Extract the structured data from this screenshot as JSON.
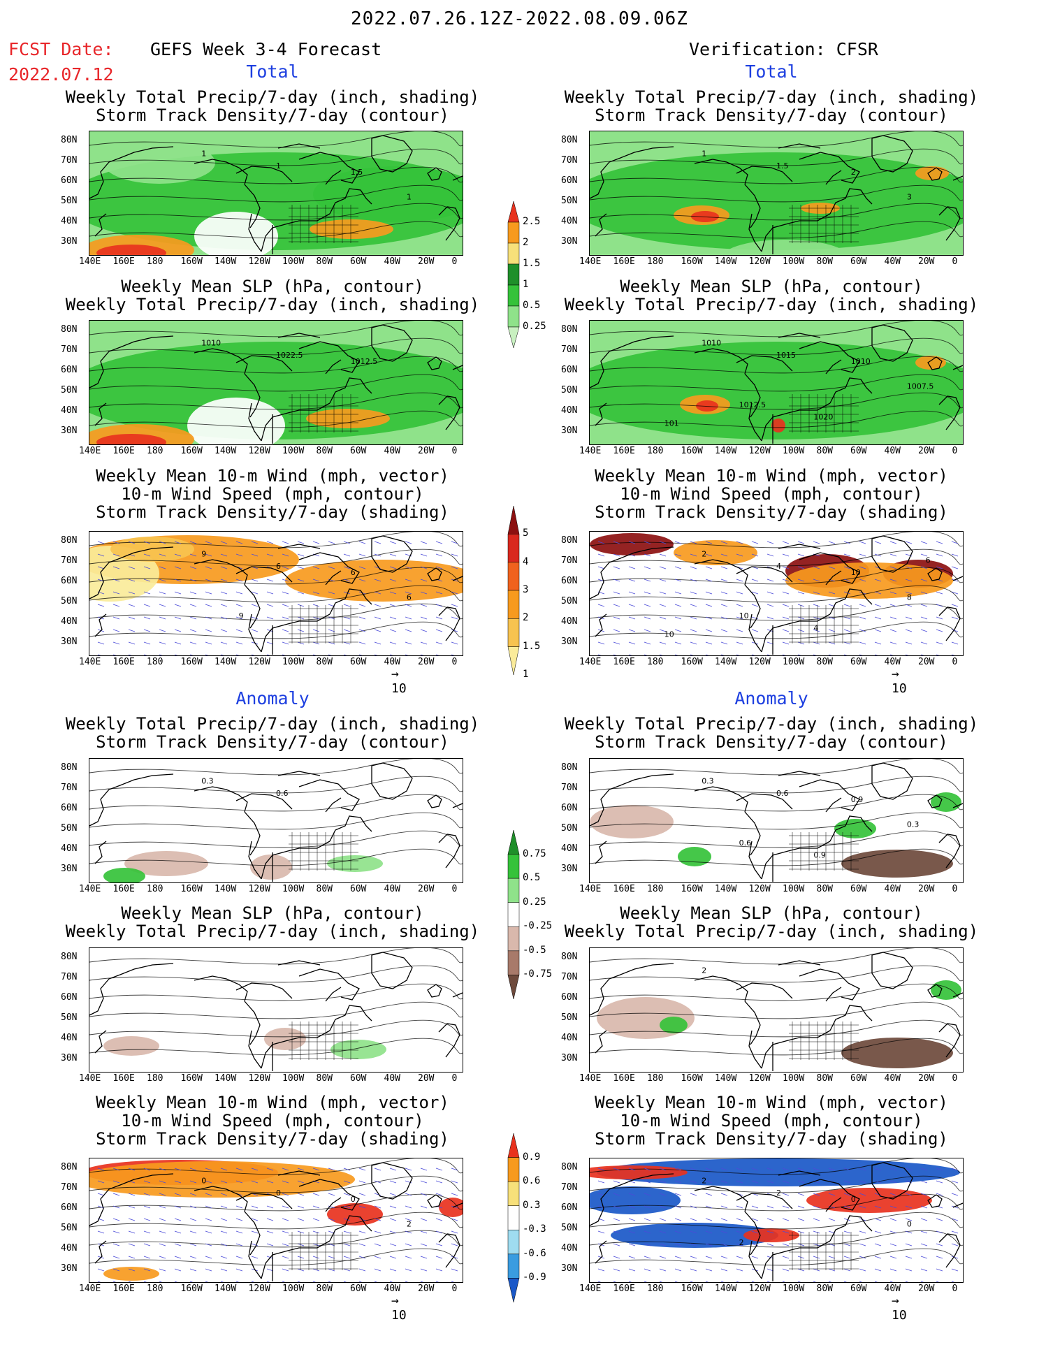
{
  "header": {
    "date_range": "2022.07.26.12Z-2022.08.09.06Z",
    "fcst_label": "FCST Date:",
    "fcst_date": "2022.07.12",
    "left_title": "GEFS Week 3-4 Forecast",
    "right_title": "Verification: CFSR",
    "total_label": "Total",
    "anomaly_label": "Anomaly"
  },
  "titles": {
    "precip_storm": [
      "Weekly Total Precip/7-day (inch, shading)",
      "Storm Track Density/7-day (contour)"
    ],
    "slp_precip": [
      "Weekly Mean SLP (hPa, contour)",
      "Weekly Total Precip/7-day (inch, shading)"
    ],
    "wind_storm": [
      "Weekly Mean 10-m Wind (mph, vector)",
      "10-m Wind Speed (mph, contour)",
      "Storm Track Density/7-day (shading)"
    ]
  },
  "axes": {
    "lat_labels": [
      "80N",
      "70N",
      "60N",
      "50N",
      "40N",
      "30N"
    ],
    "lon_labels": [
      "140E",
      "160E",
      "180",
      "160W",
      "140W",
      "120W",
      "100W",
      "80W",
      "60W",
      "40W",
      "20W",
      "0"
    ]
  },
  "vector_ref": {
    "arrow": "→",
    "value": "10"
  },
  "colorbars": {
    "precip_total": {
      "labels": [
        "2.5",
        "2",
        "1.5",
        "1",
        "0.5",
        "0.25"
      ],
      "colors": [
        "#e8321e",
        "#f79a1e",
        "#f7e07a",
        "#1f8f2a",
        "#35c23a",
        "#8fe28a",
        "#c8f0c0"
      ]
    },
    "storm_total": {
      "labels": [
        "5",
        "4",
        "3",
        "2",
        "1.5",
        "1"
      ],
      "colors": [
        "#8c1010",
        "#d9281e",
        "#f0621e",
        "#f79a1e",
        "#f7c350",
        "#faeb9a"
      ]
    },
    "precip_anom": {
      "labels": [
        "0.75",
        "0.5",
        "0.25",
        "-0.25",
        "-0.5",
        "-0.75"
      ],
      "colors": [
        "#1f8f2a",
        "#35c23a",
        "#8fe28a",
        "#ffffff",
        "#d9b8ac",
        "#a87a6a",
        "#6e4a3c"
      ]
    },
    "storm_anom": {
      "labels": [
        "0.9",
        "0.6",
        "0.3",
        "-0.3",
        "-0.6",
        "-0.9"
      ],
      "colors": [
        "#e8321e",
        "#f79a1e",
        "#f7e07a",
        "#ffffff",
        "#9fdcf0",
        "#3a9ce0",
        "#1a58c8"
      ]
    }
  },
  "contour_labels": {
    "lf1": [
      "1",
      "1",
      "1.5",
      "1"
    ],
    "rf1": [
      "1",
      "1.5",
      "2",
      "3"
    ],
    "lf2": [
      "1010",
      "1022.5",
      "1012.5"
    ],
    "rf2": [
      "1010",
      "1015",
      "1010",
      "1007.5",
      "1012.5",
      "1020",
      "101"
    ],
    "lf3": [
      "9",
      "6",
      "6",
      "6",
      "9"
    ],
    "rf3": [
      "2",
      "4",
      "10",
      "8",
      "10",
      "4",
      "10",
      "6"
    ],
    "la1": [
      "0.3",
      "0.6"
    ],
    "ra1": [
      "0.3",
      "0.6",
      "0.9",
      "0.3",
      "0.6",
      "0.9"
    ],
    "la2": [],
    "ra2": [
      "2"
    ],
    "la3": [
      "0",
      "0",
      "0",
      "2"
    ],
    "ra3": [
      "2",
      "2",
      "0",
      "0",
      "2"
    ]
  }
}
